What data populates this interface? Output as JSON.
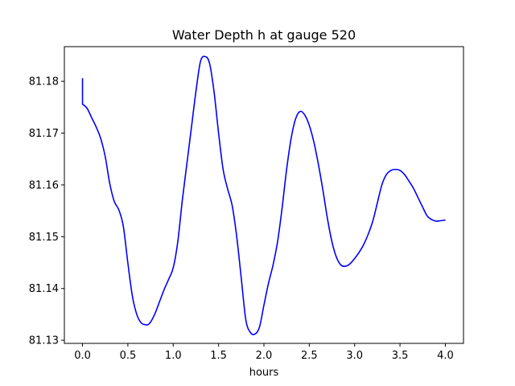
{
  "chart_data": {
    "type": "line",
    "title": "Water Depth h at gauge 520",
    "xlabel": "hours",
    "ylabel": "",
    "xlim": [
      -0.2,
      4.2
    ],
    "ylim": [
      81.1294,
      81.1867
    ],
    "xticks": [
      0.0,
      0.5,
      1.0,
      1.5,
      2.0,
      2.5,
      3.0,
      3.5,
      4.0
    ],
    "xtick_labels": [
      "0.0",
      "0.5",
      "1.0",
      "1.5",
      "2.0",
      "2.5",
      "3.0",
      "3.5",
      "4.0"
    ],
    "yticks": [
      81.13,
      81.14,
      81.15,
      81.16,
      81.17,
      81.18
    ],
    "ytick_labels": [
      "81.13",
      "81.14",
      "81.15",
      "81.16",
      "81.17",
      "81.18"
    ],
    "grid": false,
    "legend": "none",
    "series": [
      {
        "color": "#0000ff",
        "x": [
          0.0,
          0.0,
          0.05,
          0.1,
          0.15,
          0.2,
          0.25,
          0.3,
          0.35,
          0.4,
          0.45,
          0.5,
          0.55,
          0.6,
          0.65,
          0.7,
          0.72,
          0.75,
          0.8,
          0.85,
          0.9,
          0.95,
          1.0,
          1.05,
          1.1,
          1.15,
          1.2,
          1.25,
          1.3,
          1.35,
          1.4,
          1.45,
          1.5,
          1.55,
          1.6,
          1.65,
          1.7,
          1.75,
          1.8,
          1.85,
          1.9,
          1.95,
          2.0,
          2.05,
          2.1,
          2.15,
          2.2,
          2.25,
          2.3,
          2.35,
          2.4,
          2.45,
          2.5,
          2.55,
          2.6,
          2.65,
          2.7,
          2.75,
          2.8,
          2.85,
          2.9,
          2.95,
          3.0,
          3.05,
          3.1,
          3.15,
          3.2,
          3.25,
          3.3,
          3.35,
          3.4,
          3.45,
          3.5,
          3.55,
          3.6,
          3.65,
          3.7,
          3.75,
          3.8,
          3.85,
          3.9,
          3.95,
          4.0
        ],
        "y": [
          81.1806,
          81.1756,
          81.1748,
          81.173,
          81.1712,
          81.169,
          81.1655,
          81.1603,
          81.1568,
          81.1552,
          81.152,
          81.1449,
          81.1385,
          81.1349,
          81.1333,
          81.133,
          81.133,
          81.1335,
          81.1352,
          81.1375,
          81.1398,
          81.1418,
          81.144,
          81.149,
          81.157,
          81.164,
          81.171,
          81.178,
          81.1838,
          81.1848,
          81.1835,
          81.178,
          81.17,
          81.163,
          81.1592,
          81.156,
          81.15,
          81.142,
          81.134,
          81.1315,
          81.1312,
          81.1325,
          81.1368,
          81.141,
          81.1445,
          81.149,
          81.1555,
          81.163,
          81.169,
          81.1728,
          81.1742,
          81.1735,
          81.1715,
          81.1683,
          81.164,
          81.159,
          81.1535,
          81.149,
          81.146,
          81.1445,
          81.1443,
          81.1448,
          81.1458,
          81.147,
          81.1485,
          81.1505,
          81.153,
          81.1565,
          81.16,
          81.162,
          81.1628,
          81.163,
          81.1628,
          81.162,
          81.1607,
          81.1593,
          81.1575,
          81.1557,
          81.154,
          81.1533,
          81.153,
          81.1531,
          81.1532
        ]
      }
    ]
  }
}
